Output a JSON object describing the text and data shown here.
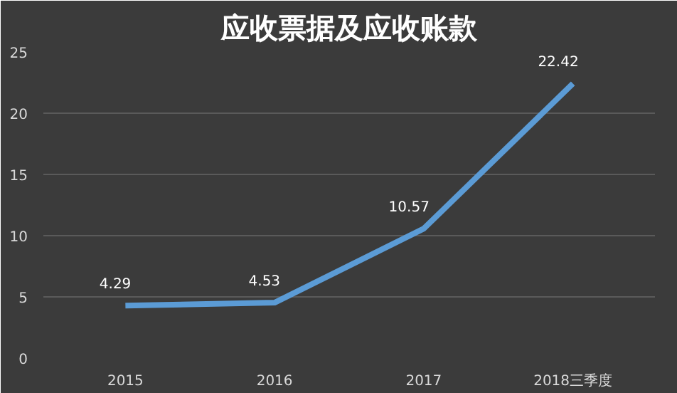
{
  "chart_data": {
    "type": "line",
    "title": "应收票据及应收账款",
    "categories": [
      "2015",
      "2016",
      "2017",
      "2018三季度"
    ],
    "series": [
      {
        "color": "#5b9bd5",
        "values": [
          4.29,
          4.53,
          10.57,
          22.42
        ]
      }
    ],
    "ylim": [
      0,
      25
    ],
    "yticks": [
      0,
      5,
      10,
      15,
      20,
      25
    ],
    "grid": "y",
    "data_labels": true,
    "line_style": "solid"
  }
}
